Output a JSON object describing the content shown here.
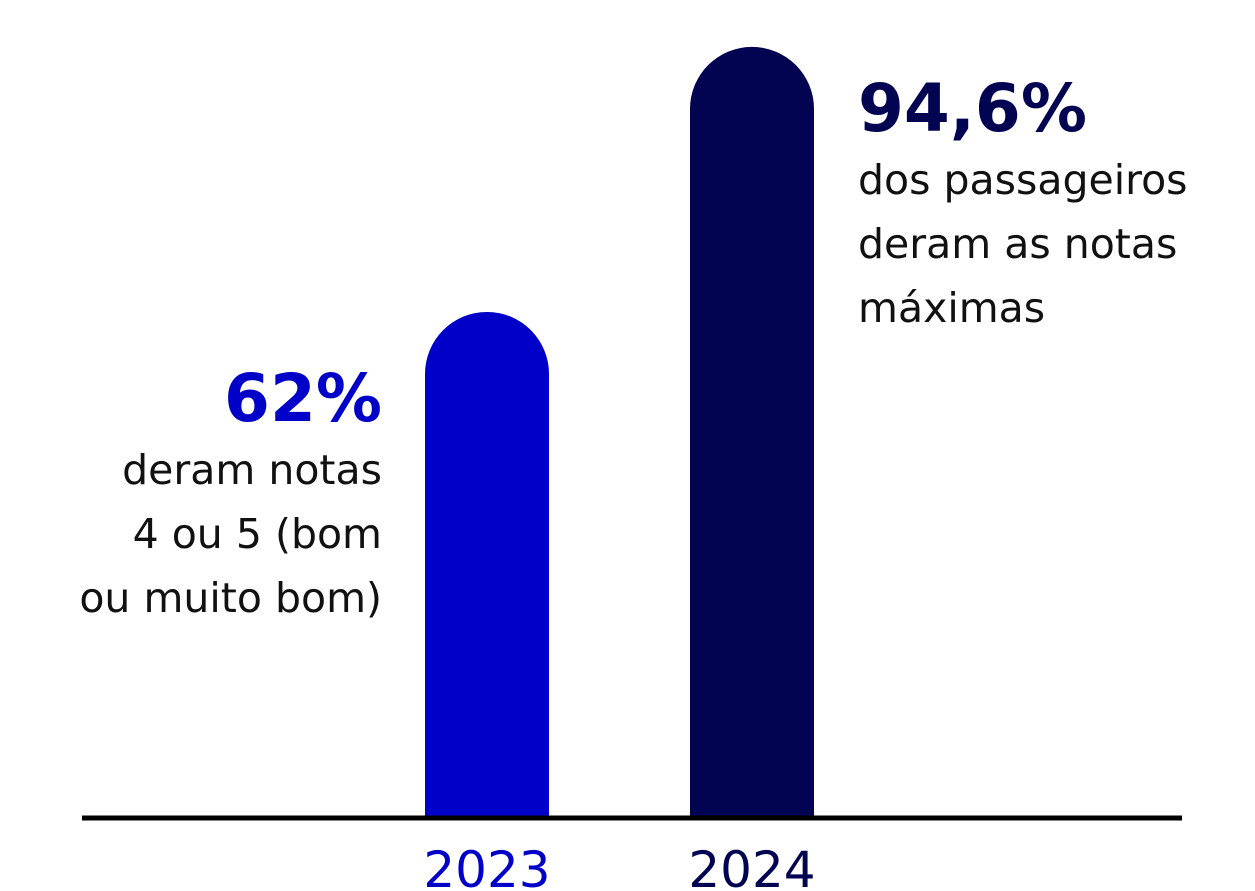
{
  "chart_data": {
    "type": "bar",
    "categories": [
      "2023",
      "2024"
    ],
    "values": [
      62,
      94.6
    ],
    "ylim": [
      0,
      100
    ],
    "grid": false,
    "colors": [
      "#0000c8",
      "#020452"
    ],
    "axis_color": "#000000",
    "annotations": [
      {
        "category": "2023",
        "value_label": "62%",
        "text_lines": [
          "deram notas",
          "4 ou 5 (bom",
          "ou muito bom)"
        ]
      },
      {
        "category": "2024",
        "value_label": "94,6%",
        "text_lines": [
          "dos passageiros",
          "deram as notas",
          "máximas"
        ]
      }
    ]
  }
}
